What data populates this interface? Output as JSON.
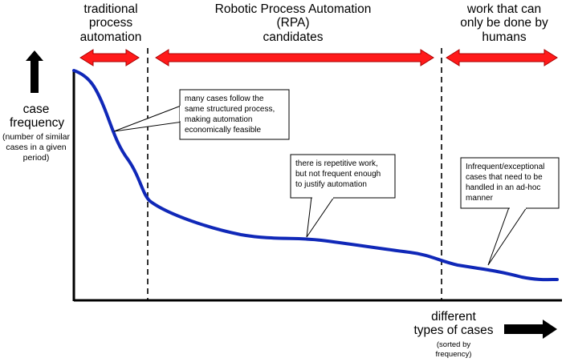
{
  "regions": [
    {
      "label": "traditional\nprocess\nautomation"
    },
    {
      "label": "Robotic Process Automation\n(RPA)\ncandidates"
    },
    {
      "label": "work that can\nonly be done by\nhumans"
    }
  ],
  "y_axis": {
    "title": "case\nfrequency",
    "subtitle": "(number of similar\ncases in a given\nperiod)"
  },
  "x_axis": {
    "title": "different\ntypes of cases",
    "subtitle": "(sorted by\nfrequency)"
  },
  "callouts": [
    {
      "text": "many cases follow the\nsame structured process,\nmaking automation\neconomically feasible"
    },
    {
      "text": "there is repetitive work,\nbut not frequent enough\nto justify automation"
    },
    {
      "text": "Infrequent/exceptional\ncases that need to be\nhandled in an ad-hoc\nmanner"
    }
  ],
  "colors": {
    "curve": "#1028b8",
    "region_arrow": "#ff1a1a",
    "axis_arrow": "#000000"
  }
}
